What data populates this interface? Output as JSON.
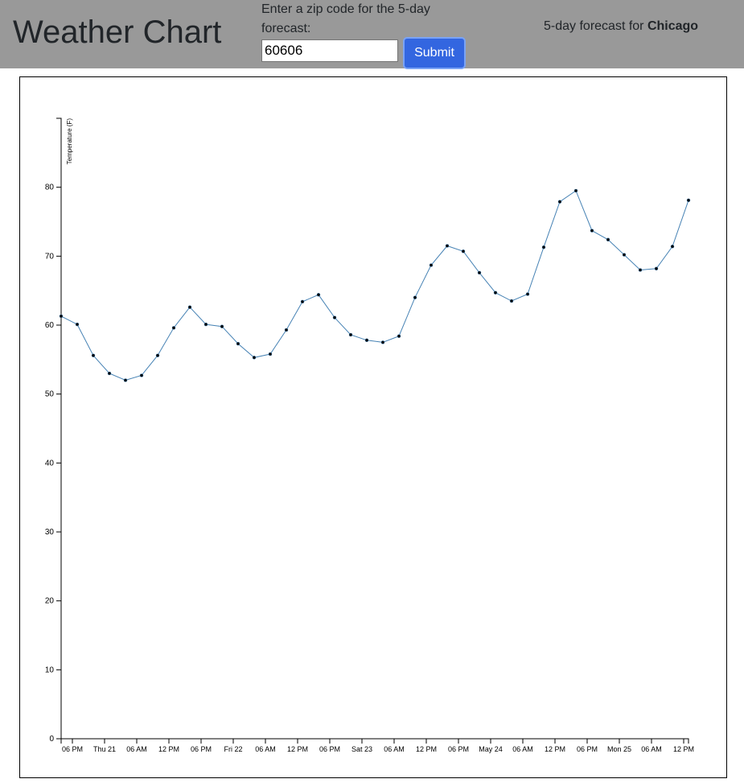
{
  "header": {
    "title": "Weather Chart",
    "zip_prompt": "Enter a zip code for the 5-day forecast:",
    "zip_value": "60606",
    "submit_label": "Submit",
    "forecast_prefix": "5-day forecast for ",
    "city": "Chicago",
    "background_color": "#999999",
    "button_color": "#3366e0"
  },
  "chart_data": {
    "type": "line",
    "ylabel": "Temperature (F)",
    "xlabel": "",
    "ylim": [
      0,
      90
    ],
    "y_ticks": [
      0,
      10,
      20,
      30,
      40,
      50,
      60,
      70,
      80
    ],
    "x_tick_labels": [
      "06 PM",
      "Thu 21",
      "06 AM",
      "12 PM",
      "06 PM",
      "Fri 22",
      "06 AM",
      "12 PM",
      "06 PM",
      "Sat 23",
      "06 AM",
      "12 PM",
      "06 PM",
      "May 24",
      "06 AM",
      "12 PM",
      "06 PM",
      "Mon 25",
      "06 AM",
      "12 PM"
    ],
    "line_color": "#4682b4",
    "series": [
      {
        "values": [
          61.3,
          60.1,
          55.6,
          53.0,
          52.0,
          52.7,
          55.6,
          59.6,
          62.6,
          60.1,
          59.8,
          57.3,
          55.3,
          55.8,
          59.3,
          63.4,
          64.4,
          61.1,
          58.6,
          57.8,
          57.5,
          58.4,
          64.0,
          68.7,
          71.5,
          70.7,
          67.6,
          64.7,
          63.5,
          64.5,
          71.3,
          77.9,
          79.5,
          73.7,
          72.4,
          70.2,
          68.0,
          68.2,
          71.4,
          78.1
        ]
      }
    ]
  }
}
